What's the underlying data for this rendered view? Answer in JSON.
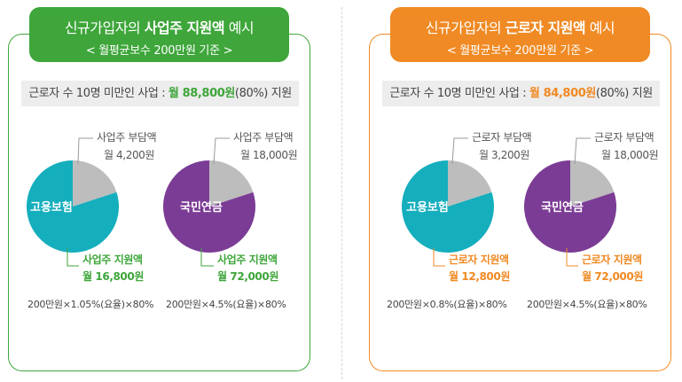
{
  "colors": {
    "green": "#3ea63a",
    "orange": "#f08a24",
    "teal": "#15aebd",
    "purple": "#7b3c95",
    "gray_slice": "#bdbdbd",
    "dark_text": "#444444"
  },
  "panels": [
    {
      "theme": "green",
      "header": {
        "title_pre": "신규가입자의 ",
        "title_bold": "사업주 지원액",
        "title_post": " 예시",
        "subtitle": "< 월평균보수 200만원 기준 >"
      },
      "sub_bar": {
        "prefix": "근로자 수 10명 미만인 사업 : ",
        "value": "월 88,800원",
        "suffix": "(80%) 지원"
      },
      "charts": [
        {
          "center_label": "고용보험",
          "share_label": "사업주 부담액",
          "share_amount": "월 4,200원",
          "support_label": "사업주 지원액",
          "support_amount": "월 16,800원",
          "formula": "200만원×1.05%(요율)×80%"
        },
        {
          "center_label": "국민연금",
          "share_label": "사업주 부담액",
          "share_amount": "월 18,000원",
          "support_label": "사업주 지원액",
          "support_amount": "월 72,000원",
          "formula": "200만원×4.5%(요율)×80%"
        }
      ]
    },
    {
      "theme": "orange",
      "header": {
        "title_pre": "신규가입자의 ",
        "title_bold": "근로자 지원액",
        "title_post": " 예시",
        "subtitle": "< 월평균보수 200만원 기준 >"
      },
      "sub_bar": {
        "prefix": "근로자 수 10명 미만인 사업 : ",
        "value": "월 84,800원",
        "suffix": "(80%) 지원"
      },
      "charts": [
        {
          "center_label": "고용보험",
          "share_label": "근로자 부담액",
          "share_amount": "월 3,200원",
          "support_label": "근로자 지원액",
          "support_amount": "월 12,800원",
          "formula": "200만원×0.8%(요율)×80%"
        },
        {
          "center_label": "국민연금",
          "share_label": "근로자 부담액",
          "share_amount": "월 18,000원",
          "support_label": "근로자 지원액",
          "support_amount": "월 72,000원",
          "formula": "200만원×4.5%(요율)×80%"
        }
      ]
    }
  ],
  "chart_data": [
    {
      "type": "pie",
      "categories": [
        "사업주 부담액",
        "사업주 지원액"
      ],
      "values": [
        4200,
        16800
      ]
    },
    {
      "type": "pie",
      "categories": [
        "사업주 부담액",
        "사업주 지원액"
      ],
      "values": [
        18000,
        72000
      ]
    },
    {
      "type": "pie",
      "categories": [
        "근로자 부담액",
        "근로자 지원액"
      ],
      "values": [
        3200,
        12800
      ]
    },
    {
      "type": "pie",
      "categories": [
        "근로자 부담액",
        "근로자 지원액"
      ],
      "values": [
        18000,
        72000
      ]
    }
  ]
}
